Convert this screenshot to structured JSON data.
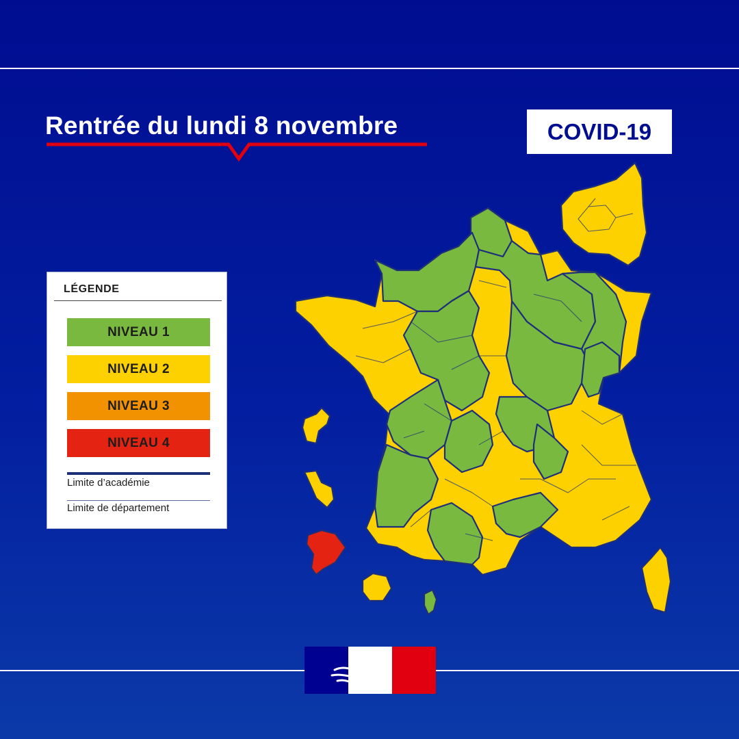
{
  "title": "Rentrée du lundi 8 novembre",
  "badge": "COVID-19",
  "legend": {
    "title": "LÉGENDE",
    "levels": [
      {
        "label": "NIVEAU 1",
        "color": "#7ab93f"
      },
      {
        "label": "NIVEAU 2",
        "color": "#fdd100"
      },
      {
        "label": "NIVEAU 3",
        "color": "#f39200"
      },
      {
        "label": "NIVEAU 4",
        "color": "#e42312"
      }
    ],
    "academy_limit": "Limite d’académie",
    "department_limit": "Limite de département"
  },
  "colors": {
    "background": "#000d91",
    "accent_red": "#e1000f",
    "level_1": "#7ab93f",
    "level_2": "#fdd100",
    "level_4": "#e42312"
  },
  "map": {
    "regions": [
      {
        "name": "metropole-base",
        "level": 2
      },
      {
        "name": "lille",
        "level": 1
      },
      {
        "name": "nord-coast",
        "level": 2
      },
      {
        "name": "normandie",
        "level": 1
      },
      {
        "name": "amiens-reims-east",
        "level": 1
      },
      {
        "name": "reims-north",
        "level": 2
      },
      {
        "name": "nancy-metz",
        "level": 1
      },
      {
        "name": "strasbourg",
        "level": 2
      },
      {
        "name": "orleans-tours",
        "level": 1
      },
      {
        "name": "dijon",
        "level": 1
      },
      {
        "name": "besancon",
        "level": 1
      },
      {
        "name": "jura",
        "level": 2
      },
      {
        "name": "poitiers",
        "level": 1
      },
      {
        "name": "limousin",
        "level": 1
      },
      {
        "name": "bordeaux",
        "level": 1
      },
      {
        "name": "lyon",
        "level": 1
      },
      {
        "name": "isere",
        "level": 1
      },
      {
        "name": "toulouse",
        "level": 1
      },
      {
        "name": "montpellier",
        "level": 1
      },
      {
        "name": "ile-de-france-inset",
        "level": 2
      },
      {
        "name": "corse",
        "level": 2
      },
      {
        "name": "guadeloupe",
        "level": 2
      },
      {
        "name": "martinique",
        "level": 2
      },
      {
        "name": "guyane",
        "level": 4
      },
      {
        "name": "reunion",
        "level": 2
      },
      {
        "name": "mayotte",
        "level": 1
      }
    ]
  }
}
